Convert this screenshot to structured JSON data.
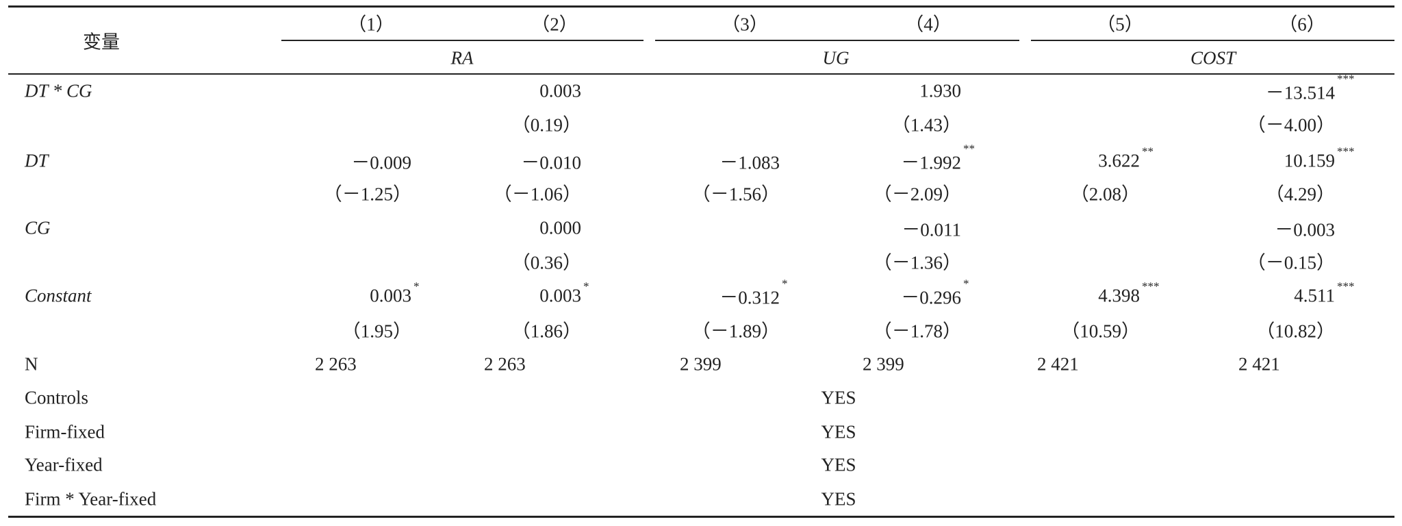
{
  "header": {
    "label": "变量",
    "columns": [
      "（1）",
      "（2）",
      "（3）",
      "（4）",
      "（5）",
      "（6）"
    ],
    "groups": [
      "RA",
      "UG",
      "COST"
    ]
  },
  "rows": [
    {
      "label": "DT * CG",
      "italic": true,
      "cells": [
        null,
        {
          "value": "0.003"
        },
        null,
        {
          "value": "1.930"
        },
        null,
        {
          "value": "－13.514",
          "stars": "***"
        }
      ]
    },
    {
      "cells": [
        null,
        {
          "value": "（0.19）"
        },
        null,
        {
          "value": "（1.43）"
        },
        null,
        {
          "value": "（－4.00）"
        }
      ]
    },
    {
      "label": "DT",
      "italic": true,
      "cells": [
        {
          "value": "－0.009"
        },
        {
          "value": "－0.010"
        },
        {
          "value": "－1.083"
        },
        {
          "value": "－1.992",
          "stars": "**"
        },
        {
          "value": "3.622",
          "stars": "**"
        },
        {
          "value": "10.159",
          "stars": "***"
        }
      ]
    },
    {
      "cells": [
        {
          "value": "（－1.25）"
        },
        {
          "value": "（－1.06）"
        },
        {
          "value": "（－1.56）"
        },
        {
          "value": "（－2.09）"
        },
        {
          "value": "（2.08）"
        },
        {
          "value": "（4.29）"
        }
      ]
    },
    {
      "label": "CG",
      "italic": true,
      "cells": [
        null,
        {
          "value": "0.000"
        },
        null,
        {
          "value": "－0.011"
        },
        null,
        {
          "value": "－0.003"
        }
      ]
    },
    {
      "cells": [
        null,
        {
          "value": "（0.36）"
        },
        null,
        {
          "value": "（－1.36）"
        },
        null,
        {
          "value": "（－0.15）"
        }
      ]
    },
    {
      "label": "Constant",
      "italic": true,
      "cells": [
        {
          "value": "0.003",
          "stars": "*"
        },
        {
          "value": "0.003",
          "stars": "*"
        },
        {
          "value": "－0.312",
          "stars": "*"
        },
        {
          "value": "－0.296",
          "stars": "*"
        },
        {
          "value": "4.398",
          "stars": "***"
        },
        {
          "value": "4.511",
          "stars": "***"
        }
      ]
    },
    {
      "cells": [
        {
          "value": "（1.95）"
        },
        {
          "value": "（1.86）"
        },
        {
          "value": "（－1.89）"
        },
        {
          "value": "（－1.78）"
        },
        {
          "value": "（10.59）"
        },
        {
          "value": "（10.82）"
        }
      ]
    },
    {
      "label": "N",
      "left": true,
      "cells": [
        {
          "value": "2 263"
        },
        {
          "value": "2 263"
        },
        {
          "value": "2 399"
        },
        {
          "value": "2 399"
        },
        {
          "value": "2 421"
        },
        {
          "value": "2 421"
        }
      ]
    }
  ],
  "footer": [
    {
      "label": "Controls",
      "value": "YES"
    },
    {
      "label": "Firm-fixed",
      "value": "YES"
    },
    {
      "label": "Year-fixed",
      "value": "YES"
    },
    {
      "label": "Firm * Year-fixed",
      "value": "YES"
    }
  ]
}
